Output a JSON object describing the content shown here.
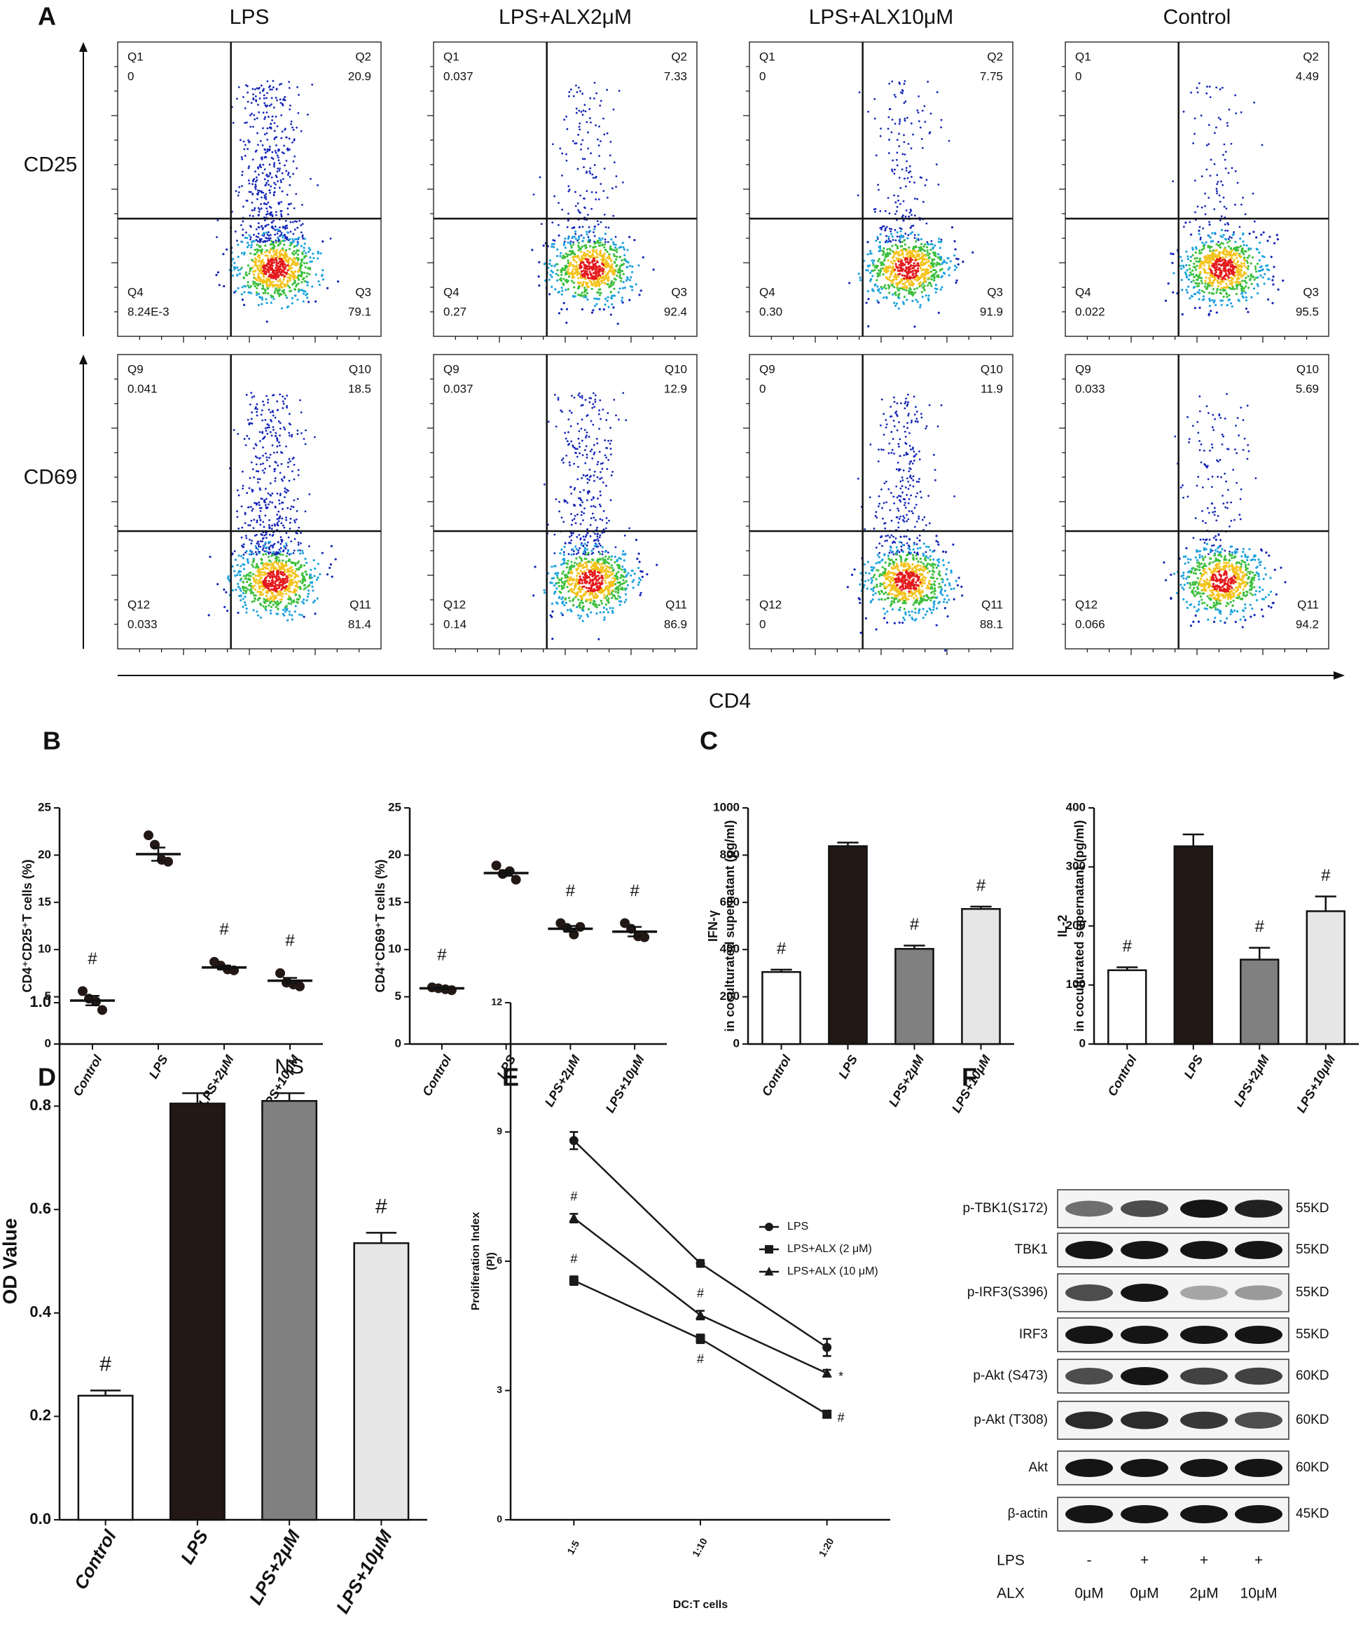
{
  "panel_labels": [
    "A",
    "B",
    "C",
    "D",
    "E",
    "F"
  ],
  "flow": {
    "columns": [
      "LPS",
      "LPS+ALX2μM",
      "LPS+ALX10μM",
      "Control"
    ],
    "rows": [
      "CD25",
      "CD69"
    ],
    "x_label": "CD4",
    "plots": [
      [
        [
          [
            "Q1",
            "0"
          ],
          [
            "Q2",
            "20.9"
          ],
          [
            "Q4",
            "8.24E-3"
          ],
          [
            "Q3",
            "79.1"
          ]
        ],
        [
          [
            "Q1",
            "0.037"
          ],
          [
            "Q2",
            "7.33"
          ],
          [
            "Q4",
            "0.27"
          ],
          [
            "Q3",
            "92.4"
          ]
        ],
        [
          [
            "Q1",
            "0"
          ],
          [
            "Q2",
            "7.75"
          ],
          [
            "Q4",
            "0.30"
          ],
          [
            "Q3",
            "91.9"
          ]
        ],
        [
          [
            "Q1",
            "0"
          ],
          [
            "Q2",
            "4.49"
          ],
          [
            "Q4",
            "0.022"
          ],
          [
            "Q3",
            "95.5"
          ]
        ]
      ],
      [
        [
          [
            "Q9",
            "0.041"
          ],
          [
            "Q10",
            "18.5"
          ],
          [
            "Q12",
            "0.033"
          ],
          [
            "Q11",
            "81.4"
          ]
        ],
        [
          [
            "Q9",
            "0.037"
          ],
          [
            "Q10",
            "12.9"
          ],
          [
            "Q12",
            "0.14"
          ],
          [
            "Q11",
            "86.9"
          ]
        ],
        [
          [
            "Q9",
            "0"
          ],
          [
            "Q10",
            "11.9"
          ],
          [
            "Q12",
            "0"
          ],
          [
            "Q11",
            "88.1"
          ]
        ],
        [
          [
            "Q9",
            "0.033"
          ],
          [
            "Q10",
            "5.69"
          ],
          [
            "Q12",
            "0.066"
          ],
          [
            "Q11",
            "94.2"
          ]
        ]
      ]
    ]
  },
  "chart_data": [
    {
      "type": "dot",
      "y_label": [
        "CD4⁺CD25⁺T cells (%)"
      ],
      "categories": [
        "Control",
        "LPS",
        "LPS+2μM",
        "LPS+10μM"
      ],
      "points": [
        [
          5.6,
          4.8,
          4.5,
          3.6
        ],
        [
          22.1,
          21.1,
          19.5,
          19.3
        ],
        [
          8.7,
          8.3,
          7.9,
          7.8
        ],
        [
          7.5,
          6.5,
          6.3,
          6.1
        ]
      ],
      "values": [
        4.6,
        20.1,
        8.1,
        6.7
      ],
      "errors": [
        0.5,
        0.7,
        0.2,
        0.3
      ],
      "marks": [
        "#",
        null,
        "#",
        "#"
      ],
      "color": "#231815",
      "ylim": [
        0,
        25
      ],
      "yticks": [
        0,
        5,
        10,
        15,
        20,
        25
      ]
    },
    {
      "type": "dot",
      "y_label": [
        "CD4⁺CD69⁺T cells (%)"
      ],
      "categories": [
        "Control",
        "LPS",
        "LPS+2μM",
        "LPS+10μM"
      ],
      "points": [
        [
          6.0,
          5.9,
          5.8,
          5.7
        ],
        [
          18.9,
          18.0,
          18.3,
          17.4
        ],
        [
          12.8,
          12.3,
          11.6,
          12.4
        ],
        [
          12.8,
          12.2,
          11.4,
          11.3
        ]
      ],
      "values": [
        5.9,
        18.1,
        12.2,
        11.9
      ],
      "errors": [
        0.1,
        0.3,
        0.3,
        0.5
      ],
      "marks": [
        "#",
        null,
        "#",
        "#"
      ],
      "color": "#231815",
      "ylim": [
        0,
        25
      ],
      "yticks": [
        0,
        5,
        10,
        15,
        20,
        25
      ]
    },
    {
      "type": "bar",
      "y_label": [
        "IFN-γ",
        "in coculturated supernatant  (pg/ml)"
      ],
      "categories": [
        "Control",
        "LPS",
        "LPS+2μM",
        "LPS+10μM"
      ],
      "values": [
        305,
        838,
        403,
        572
      ],
      "errors": [
        10,
        15,
        14,
        10
      ],
      "marks": [
        "#",
        null,
        "#",
        "#"
      ],
      "colors": [
        "#ffffff",
        "#231815",
        "#808080",
        "#e6e6e6"
      ],
      "ylim": [
        0,
        1000
      ],
      "yticks": [
        0,
        200,
        400,
        600,
        800,
        1000
      ]
    },
    {
      "type": "bar",
      "y_label": [
        "IL-2",
        "in coculturated supernatant  (pg/ml)"
      ],
      "categories": [
        "Control",
        "LPS",
        "LPS+2μM",
        "LPS+10μM"
      ],
      "values": [
        125,
        335,
        143,
        225
      ],
      "errors": [
        5,
        20,
        20,
        25
      ],
      "marks": [
        "#",
        null,
        "#",
        "#"
      ],
      "colors": [
        "#ffffff",
        "#231815",
        "#808080",
        "#e6e6e6"
      ],
      "ylim": [
        0,
        400
      ],
      "yticks": [
        0,
        100,
        200,
        300,
        400
      ]
    },
    {
      "type": "bar",
      "y_label": [
        "OD Value"
      ],
      "categories": [
        "Control",
        "LPS",
        "LPS+2μM",
        "LPS+10μM"
      ],
      "values": [
        0.24,
        0.805,
        0.81,
        0.535
      ],
      "errors": [
        0.01,
        0.02,
        0.015,
        0.02
      ],
      "marks": [
        "#",
        null,
        "NS",
        "#"
      ],
      "colors": [
        "#ffffff",
        "#231815",
        "#808080",
        "#e6e6e6"
      ],
      "ylim": [
        0,
        1
      ],
      "yticks": [
        {
          "value": 0,
          "label": "0.0"
        },
        0.2,
        0.4,
        0.6,
        0.8,
        {
          "value": 1,
          "label": "1.0"
        }
      ]
    },
    {
      "type": "line",
      "y_label": [
        "Proliferation Index",
        "(PI)"
      ],
      "x_label": "DC:T cells",
      "categories": [
        "1:5",
        "1:10",
        "1:20"
      ],
      "series": [
        {
          "name": "LPS",
          "marker": "circle",
          "values": [
            8.8,
            5.95,
            4.0
          ],
          "errors": [
            0.2,
            0.08,
            0.2
          ],
          "marks": [
            null,
            null,
            null
          ]
        },
        {
          "name": "LPS+ALX (2 μM)",
          "marker": "square",
          "values": [
            5.55,
            4.2,
            2.45
          ],
          "errors": [
            0.1,
            0.1,
            0.08
          ],
          "marks": [
            "#",
            "#",
            "#"
          ]
        },
        {
          "name": "LPS+ALX (10 μM)",
          "marker": "triangle",
          "values": [
            7.0,
            4.75,
            3.4
          ],
          "errors": [
            0.1,
            0.1,
            0.08
          ],
          "marks": [
            "#",
            "#",
            "*"
          ]
        }
      ],
      "color": "#1a1a1a",
      "ylim": [
        0,
        12
      ],
      "yticks": [
        0,
        3,
        6,
        9,
        12
      ]
    }
  ],
  "blot": {
    "rows": [
      {
        "label": "p-TBK1(S172)",
        "size": "55KD"
      },
      {
        "label": "TBK1",
        "size": "55KD"
      },
      {
        "label": "p-IRF3(S396)",
        "size": "55KD"
      },
      {
        "label": "IRF3",
        "size": "55KD"
      },
      {
        "label": "p-Akt (S473)",
        "size": "60KD"
      },
      {
        "label": "p-Akt (T308)",
        "size": "60KD"
      },
      {
        "label": "Akt",
        "size": "60KD"
      },
      {
        "label": "β-actin",
        "size": "45KD"
      }
    ],
    "conditions": [
      {
        "label": "LPS",
        "values": [
          "-",
          "+",
          "+",
          "+"
        ]
      },
      {
        "label": "ALX",
        "values": [
          "0μM",
          "0μM",
          "2μM",
          "10μM"
        ]
      }
    ]
  }
}
